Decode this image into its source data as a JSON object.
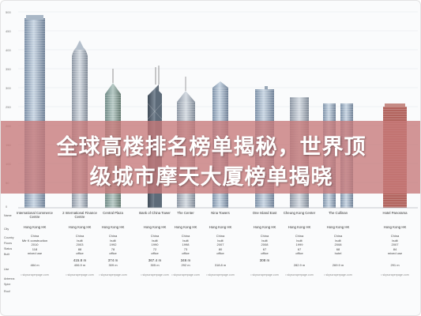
{
  "axis": {
    "ticks": [
      "500",
      "450",
      "400",
      "350",
      "300",
      "250",
      "200",
      "150",
      "100",
      "50",
      "0"
    ]
  },
  "row_labels": {
    "name": "Name",
    "city": "City",
    "country": "Country",
    "floors": "Floors",
    "status": "Status",
    "built": "Built",
    "use": "Use",
    "antenna": "Antenna",
    "spire": "Spire",
    "roof": "Roof"
  },
  "overlay": {
    "line1": "全球高楼排名榜单揭秘，世界顶",
    "line2": "级城市摩天大厦榜单揭晓"
  },
  "buildings": [
    {
      "name": "International Commerce Centre",
      "city": "Hong Kong HK",
      "country": "China",
      "status": "Mtr K construction",
      "year": "2010",
      "floors": "118",
      "use": "mixed use",
      "spire": "",
      "roof": "484 m",
      "credit": "• skyscraperpage.com"
    },
    {
      "name": "2 International Finance Centre",
      "city": "Hong Kong HK",
      "country": "China",
      "status": "built",
      "year": "2003",
      "floors": "88",
      "use": "office",
      "spire": "415.8 m",
      "roof": "406.9 m",
      "credit": "• skyscraperpage.com"
    },
    {
      "name": "Central Plaza",
      "city": "Hong Kong HK",
      "country": "China",
      "status": "built",
      "year": "1992",
      "floors": "78",
      "use": "office",
      "spire": "374 m",
      "roof": "309 m",
      "credit": "• skyscraperpage.com"
    },
    {
      "name": "Bank of China Tower",
      "city": "Hong Kong HK",
      "country": "China",
      "status": "built",
      "year": "1990",
      "floors": "72",
      "use": "office",
      "spire": "367.4 m",
      "roof": "305 m",
      "credit": "• skyscraperpage.com"
    },
    {
      "name": "The Center",
      "city": "Hong Kong HK",
      "country": "China",
      "status": "built",
      "year": "1998",
      "floors": "73",
      "use": "office",
      "spire": "346 m",
      "roof": "292 m",
      "credit": "• skyscraperpage.com"
    },
    {
      "name": "Nina Towers",
      "city": "Hong Kong HK",
      "country": "China",
      "status": "built",
      "year": "2007",
      "floors": "80",
      "use": "office",
      "spire": "",
      "roof": "318.8 m",
      "credit": "• skyscraperpage.com"
    },
    {
      "name": "One Island East",
      "city": "Hong Kong HK",
      "country": "China",
      "status": "built",
      "year": "2008",
      "floors": "67",
      "use": "office",
      "spire": "308 m",
      "roof": "",
      "credit": "• skyscraperpage.com"
    },
    {
      "name": "Cheung Kong Center",
      "city": "Hong Kong HK",
      "country": "China",
      "status": "built",
      "year": "1999",
      "floors": "67",
      "use": "office",
      "spire": "",
      "roof": "282.9 m",
      "credit": "• skyscraperpage.com"
    },
    {
      "name": "The Cullinan",
      "city": "Hong Kong HK",
      "country": "China",
      "status": "built",
      "year": "2008",
      "floors": "68",
      "use": "hotel",
      "spire": "",
      "roof": "269.9 m",
      "credit": "• skyscraperpage.com"
    },
    {
      "name": "Hotel Panorama",
      "city": "Hong Kong HK",
      "country": "China",
      "status": "built",
      "year": "2007",
      "floors": "84",
      "use": "mixed use",
      "spire": "",
      "roof": "291 m",
      "credit": "• skyscraperpage.com"
    }
  ]
}
